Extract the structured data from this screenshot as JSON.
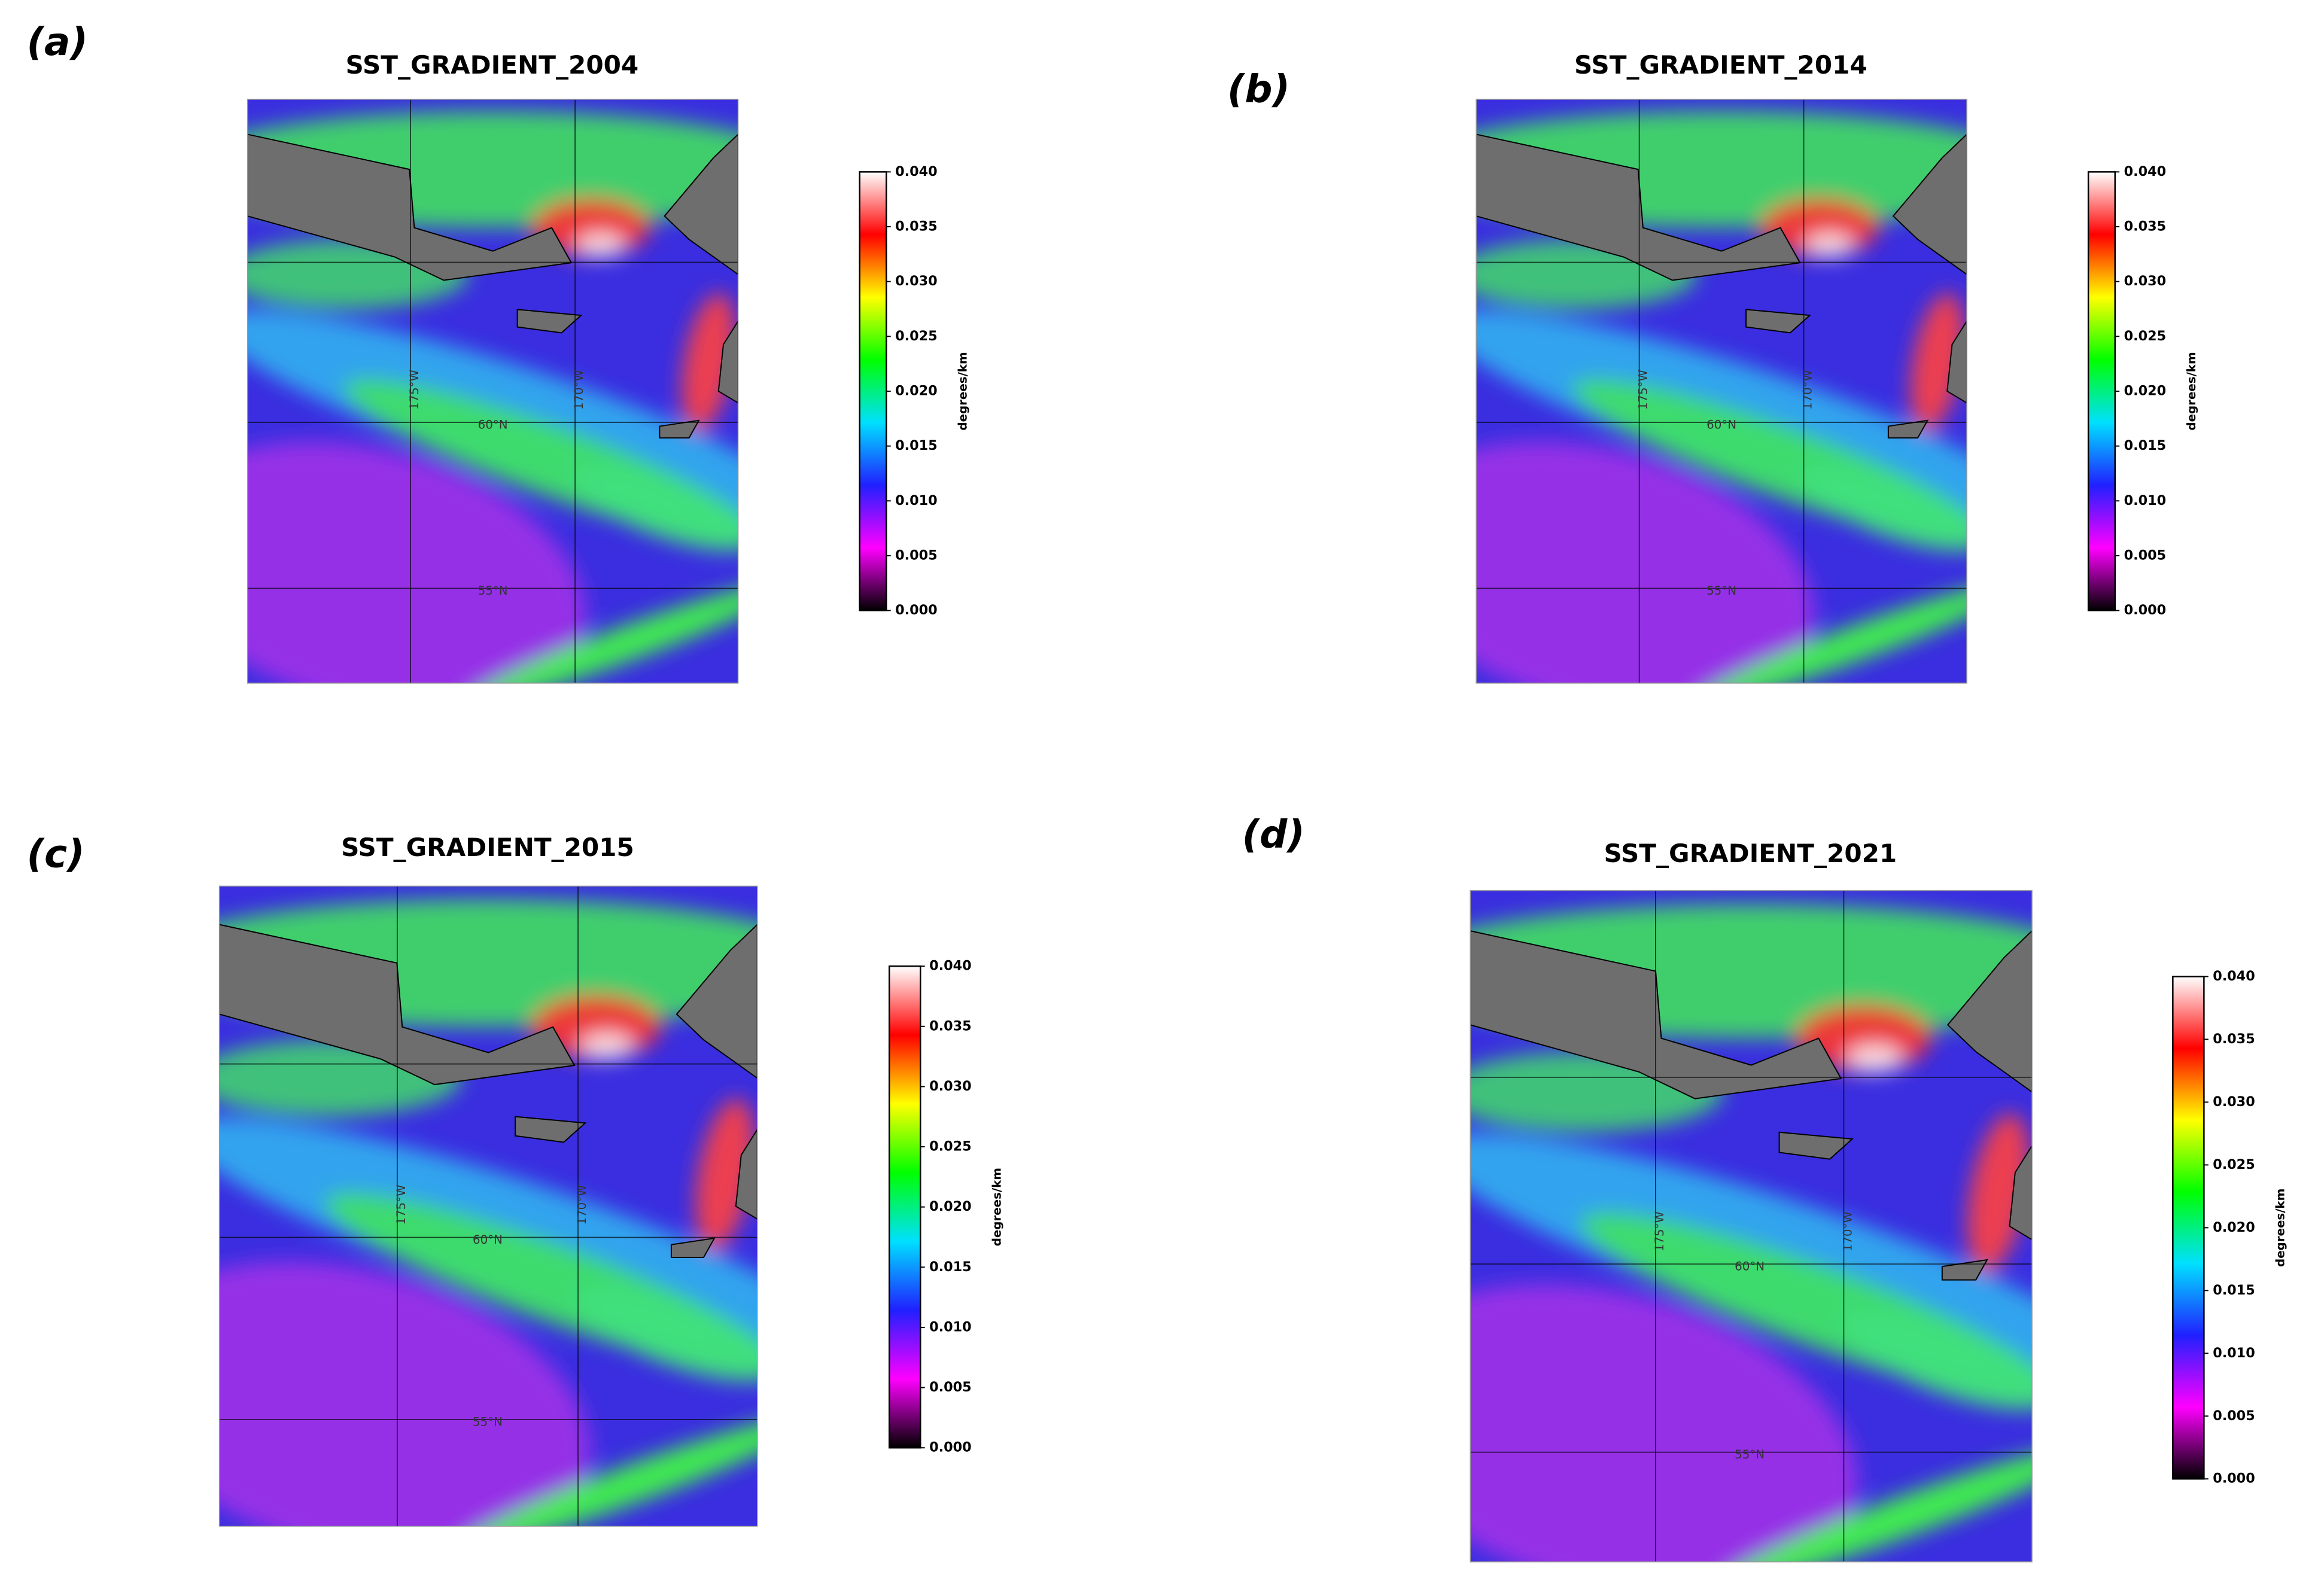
{
  "chart_data": [
    {
      "type": "heatmap",
      "panel_label": "(a)",
      "title": "SST_GRADIENT_2004",
      "meridian_labels": [
        "175°W",
        "170°W"
      ],
      "parallel_labels": [
        "60°N",
        "55°N"
      ],
      "colorbar": {
        "label": "degrees/km",
        "clim": [
          0,
          0.04
        ],
        "colormap": [
          "#000000",
          "#ff00ff",
          "#2020ff",
          "#00e0ff",
          "#00ff00",
          "#ffff00",
          "#ff0000",
          "#ffffff"
        ],
        "ticks": [
          {
            "value": 0,
            "label": "0.000"
          },
          {
            "value": 0.005,
            "label": "0.005"
          },
          {
            "value": 0.01,
            "label": "0.010"
          },
          {
            "value": 0.015,
            "label": "0.015"
          },
          {
            "value": 0.02,
            "label": "0.020"
          },
          {
            "value": 0.025,
            "label": "0.025"
          },
          {
            "value": 0.03,
            "label": "0.030"
          },
          {
            "value": 0.035,
            "label": "0.035"
          },
          {
            "value": 0.04,
            "label": "0.040"
          }
        ]
      }
    },
    {
      "type": "heatmap",
      "panel_label": "(b)",
      "title": "SST_GRADIENT_2014",
      "meridian_labels": [
        "175°W",
        "170°W"
      ],
      "parallel_labels": [
        "60°N",
        "55°N"
      ],
      "colorbar": {
        "label": "degrees/km",
        "clim": [
          0,
          0.04
        ],
        "colormap": [
          "#000000",
          "#ff00ff",
          "#2020ff",
          "#00e0ff",
          "#00ff00",
          "#ffff00",
          "#ff0000",
          "#ffffff"
        ],
        "ticks": [
          {
            "value": 0,
            "label": "0.000"
          },
          {
            "value": 0.005,
            "label": "0.005"
          },
          {
            "value": 0.01,
            "label": "0.010"
          },
          {
            "value": 0.015,
            "label": "0.015"
          },
          {
            "value": 0.02,
            "label": "0.020"
          },
          {
            "value": 0.025,
            "label": "0.025"
          },
          {
            "value": 0.03,
            "label": "0.030"
          },
          {
            "value": 0.035,
            "label": "0.035"
          },
          {
            "value": 0.04,
            "label": "0.040"
          }
        ]
      }
    },
    {
      "type": "heatmap",
      "panel_label": "(c)",
      "title": "SST_GRADIENT_2015",
      "meridian_labels": [
        "175°W",
        "170°W"
      ],
      "parallel_labels": [
        "60°N",
        "55°N"
      ],
      "colorbar": {
        "label": "degrees/km",
        "clim": [
          0,
          0.04
        ],
        "colormap": [
          "#000000",
          "#ff00ff",
          "#2020ff",
          "#00e0ff",
          "#00ff00",
          "#ffff00",
          "#ff0000",
          "#ffffff"
        ],
        "ticks": [
          {
            "value": 0,
            "label": "0.000"
          },
          {
            "value": 0.005,
            "label": "0.005"
          },
          {
            "value": 0.01,
            "label": "0.010"
          },
          {
            "value": 0.015,
            "label": "0.015"
          },
          {
            "value": 0.02,
            "label": "0.020"
          },
          {
            "value": 0.025,
            "label": "0.025"
          },
          {
            "value": 0.03,
            "label": "0.030"
          },
          {
            "value": 0.035,
            "label": "0.035"
          },
          {
            "value": 0.04,
            "label": "0.040"
          }
        ]
      }
    },
    {
      "type": "heatmap",
      "panel_label": "(d)",
      "title": "SST_GRADIENT_2021",
      "meridian_labels": [
        "175°W",
        "170°W"
      ],
      "parallel_labels": [
        "60°N",
        "55°N"
      ],
      "colorbar": {
        "label": "degrees/km",
        "clim": [
          0,
          0.04
        ],
        "colormap": [
          "#000000",
          "#ff00ff",
          "#2020ff",
          "#00e0ff",
          "#00ff00",
          "#ffff00",
          "#ff0000",
          "#ffffff"
        ],
        "ticks": [
          {
            "value": 0,
            "label": "0.000"
          },
          {
            "value": 0.005,
            "label": "0.005"
          },
          {
            "value": 0.01,
            "label": "0.010"
          },
          {
            "value": 0.015,
            "label": "0.015"
          },
          {
            "value": 0.02,
            "label": "0.020"
          },
          {
            "value": 0.025,
            "label": "0.025"
          },
          {
            "value": 0.03,
            "label": "0.030"
          },
          {
            "value": 0.035,
            "label": "0.035"
          },
          {
            "value": 0.04,
            "label": "0.040"
          }
        ]
      }
    }
  ]
}
